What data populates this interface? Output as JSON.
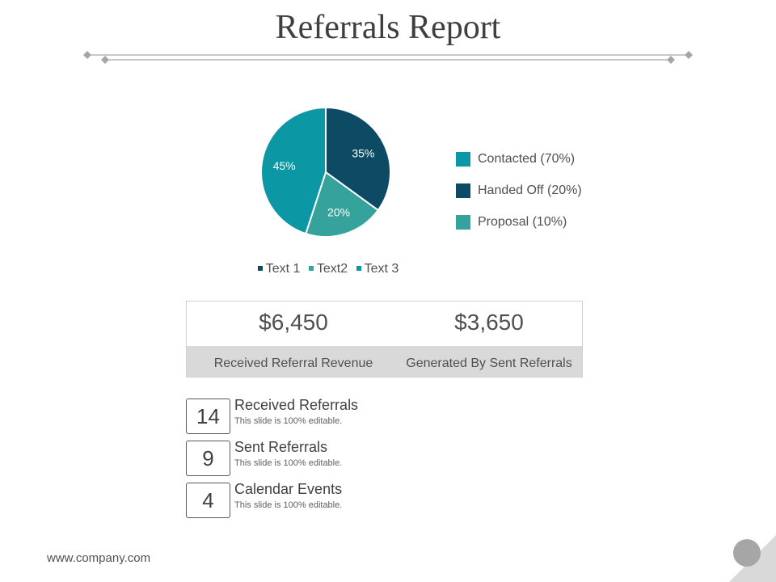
{
  "title": "Referrals Report",
  "chart_data": {
    "type": "pie",
    "slices": [
      {
        "name": "Text 1",
        "value": 35,
        "label": "35%",
        "color": "#0d4a63"
      },
      {
        "name": "Text2",
        "value": 20,
        "label": "20%",
        "color": "#35a39b"
      },
      {
        "name": "Text 3",
        "value": 45,
        "label": "45%",
        "color": "#0b97a3"
      }
    ],
    "legend_position": "bottom"
  },
  "legend_right": [
    {
      "label": "Contacted (70%)",
      "color": "#0b97a3"
    },
    {
      "label": "Handed Off (20%)",
      "color": "#0d4a63"
    },
    {
      "label": "Proposal (10%)",
      "color": "#35a39b"
    }
  ],
  "stats": [
    {
      "value": "$6,450",
      "label": "Received Referral Revenue"
    },
    {
      "value": "$3,650",
      "label": "Generated By Sent Referrals"
    }
  ],
  "items": [
    {
      "number": "14",
      "title": "Received Referrals",
      "desc": "This slide is 100% editable."
    },
    {
      "number": "9",
      "title": "Sent Referrals",
      "desc": "This slide is 100% editable."
    },
    {
      "number": "4",
      "title": "Calendar Events",
      "desc": "This slide is 100% editable."
    }
  ],
  "footer": "www.company.com"
}
